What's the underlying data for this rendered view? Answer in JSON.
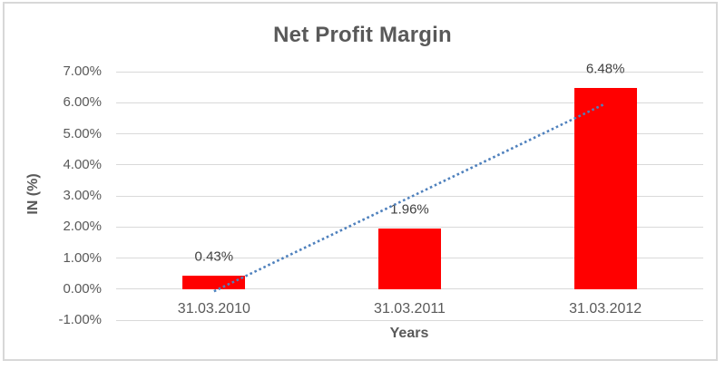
{
  "chart_data": {
    "type": "bar",
    "title": "Net Profit Margin",
    "xlabel": "Years",
    "ylabel": "IN (%)",
    "categories": [
      "31.03.2010",
      "31.03.2011",
      "31.03.2012"
    ],
    "values": [
      0.43,
      1.96,
      6.48
    ],
    "data_labels": [
      "0.43%",
      "1.96%",
      "6.48%"
    ],
    "series_name": "Net Profit Margin",
    "unit": "percent",
    "ylim": [
      -1,
      7
    ],
    "y_ticks": [
      {
        "value": 7,
        "label": "7.00%"
      },
      {
        "value": 6,
        "label": "6.00%"
      },
      {
        "value": 5,
        "label": "5.00%"
      },
      {
        "value": 4,
        "label": "4.00%"
      },
      {
        "value": 3,
        "label": "3.00%"
      },
      {
        "value": 2,
        "label": "2.00%"
      },
      {
        "value": 1,
        "label": "1.00%"
      },
      {
        "value": 0,
        "label": "0.00%"
      },
      {
        "value": -1,
        "label": "-1.00%"
      }
    ],
    "grid": true,
    "legend": "none",
    "trendline": {
      "type": "linear",
      "style": "dotted",
      "start_category_index": 0,
      "end_category_index": 2,
      "start_value": -0.07,
      "end_value": 5.97
    }
  },
  "colors": {
    "bar": "#FF0000",
    "trendline": "#4F81BD",
    "gridline": "#D9D9D9",
    "tick_text": "#595959",
    "data_label_text": "#404040",
    "title_text": "#595959",
    "frame_border": "#D8D8D8",
    "background": "#FFFFFF"
  }
}
